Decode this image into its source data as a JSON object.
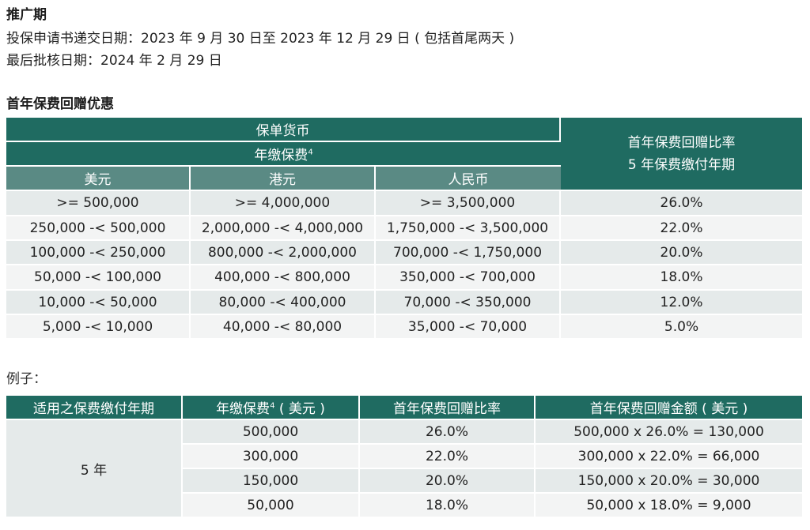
{
  "promo": {
    "title": "推广期",
    "submission_line": "投保申请书递交日期：2023 年 9 月 30 日至 2023 年 12 月 29 日 ( 包括首尾两天 )",
    "approval_line": "最后批核日期：2024 年 2 月 29 日"
  },
  "rebate_table": {
    "section_title": "首年保费回赠优惠",
    "currency_header": "保单货币",
    "premium_header": "年缴保费",
    "premium_footnote": "4",
    "rate_header_line1": "首年保费回赠比率",
    "rate_header_line2": "5 年保费缴付年期",
    "currencies": [
      "美元",
      "港元",
      "人民币"
    ],
    "rows": [
      {
        "usd": ">= 500,000",
        "hkd": ">= 4,000,000",
        "rmb": ">= 3,500,000",
        "rate": "26.0%"
      },
      {
        "usd": "250,000 -< 500,000",
        "hkd": "2,000,000 -< 4,000,000",
        "rmb": "1,750,000 -< 3,500,000",
        "rate": "22.0%"
      },
      {
        "usd": "100,000 -< 250,000",
        "hkd": "800,000 -< 2,000,000",
        "rmb": "700,000 -< 1,750,000",
        "rate": "20.0%"
      },
      {
        "usd": "50,000 -< 100,000",
        "hkd": "400,000 -< 800,000",
        "rmb": "350,000 -< 700,000",
        "rate": "18.0%"
      },
      {
        "usd": "10,000 -< 50,000",
        "hkd": "80,000 -< 400,000",
        "rmb": "70,000 -< 350,000",
        "rate": "12.0%"
      },
      {
        "usd": "5,000 -< 10,000",
        "hkd": "40,000 -< 80,000",
        "rmb": "35,000 -< 70,000",
        "rate": "5.0%"
      }
    ]
  },
  "example": {
    "label": "例子：",
    "headers": {
      "term": "适用之保费缴付年期",
      "premium": "年缴保费",
      "premium_footnote": "4",
      "premium_suffix": " ( 美元 )",
      "rate": "首年保费回赠比率",
      "amount": "首年保费回赠金额 ( 美元 )"
    },
    "term_value": "5 年",
    "rows": [
      {
        "premium": "500,000",
        "rate": "26.0%",
        "amount": "500,000 x 26.0% = 130,000"
      },
      {
        "premium": "300,000",
        "rate": "22.0%",
        "amount": "300,000 x 22.0% = 66,000"
      },
      {
        "premium": "150,000",
        "rate": "20.0%",
        "amount": "150,000 x 20.0% = 30,000"
      },
      {
        "premium": "50,000",
        "rate": "18.0%",
        "amount": "50,000 x 18.0% = 9,000"
      }
    ]
  }
}
